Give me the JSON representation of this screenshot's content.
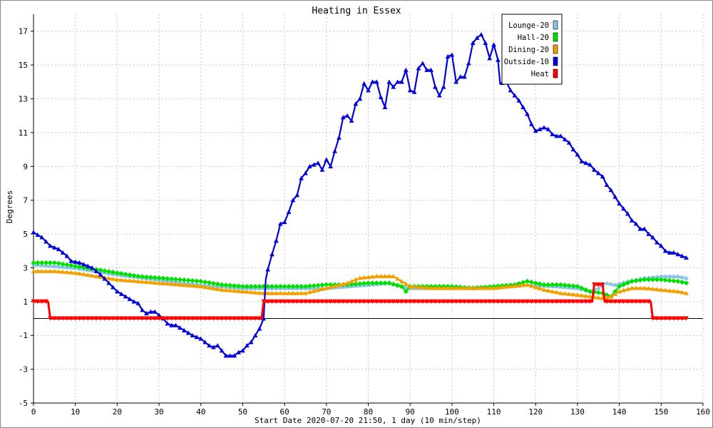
{
  "chart_data": {
    "type": "line",
    "title": "Heating in Essex",
    "xlabel": "Start Date 2020-07-20 21:50, 1 day (10 min/step)",
    "ylabel": "Degrees",
    "xlim": [
      0,
      160
    ],
    "ylim": [
      -5,
      18
    ],
    "x_ticks": [
      0,
      10,
      20,
      30,
      40,
      50,
      60,
      70,
      80,
      90,
      100,
      110,
      120,
      130,
      140,
      150,
      160
    ],
    "y_ticks": [
      -5,
      -3,
      -1,
      1,
      3,
      5,
      7,
      9,
      11,
      13,
      15,
      17
    ],
    "grid": true,
    "legend_position": "top-right",
    "zero_line": 0,
    "series": [
      {
        "name": "Lounge-20",
        "color": "#87c4e6",
        "marker": "triangle",
        "points": [
          [
            0,
            3.2
          ],
          [
            10,
            3.0
          ],
          [
            20,
            2.6
          ],
          [
            30,
            2.3
          ],
          [
            40,
            2.0
          ],
          [
            50,
            1.8
          ],
          [
            55,
            1.8
          ],
          [
            60,
            1.8
          ],
          [
            70,
            1.8
          ],
          [
            80,
            2.0
          ],
          [
            85,
            2.1
          ],
          [
            88,
            1.9
          ],
          [
            90,
            1.8
          ],
          [
            100,
            1.8
          ],
          [
            110,
            1.9
          ],
          [
            118,
            2.0
          ],
          [
            125,
            1.9
          ],
          [
            130,
            1.8
          ],
          [
            133,
            1.6
          ],
          [
            135,
            1.8
          ],
          [
            137,
            2.1
          ],
          [
            139,
            2.0
          ],
          [
            142,
            2.2
          ],
          [
            146,
            2.4
          ],
          [
            150,
            2.5
          ],
          [
            154,
            2.5
          ],
          [
            156,
            2.4
          ]
        ]
      },
      {
        "name": "Hall-20",
        "color": "#00e000",
        "marker": "diamond",
        "points": [
          [
            0,
            3.3
          ],
          [
            5,
            3.3
          ],
          [
            10,
            3.1
          ],
          [
            15,
            2.9
          ],
          [
            20,
            2.7
          ],
          [
            25,
            2.5
          ],
          [
            30,
            2.4
          ],
          [
            35,
            2.3
          ],
          [
            40,
            2.2
          ],
          [
            45,
            2.0
          ],
          [
            50,
            1.9
          ],
          [
            55,
            1.9
          ],
          [
            60,
            1.9
          ],
          [
            65,
            1.9
          ],
          [
            70,
            2.0
          ],
          [
            75,
            2.0
          ],
          [
            80,
            2.1
          ],
          [
            85,
            2.1
          ],
          [
            88,
            1.9
          ],
          [
            89,
            1.6
          ],
          [
            90,
            1.9
          ],
          [
            95,
            1.9
          ],
          [
            100,
            1.9
          ],
          [
            105,
            1.8
          ],
          [
            110,
            1.9
          ],
          [
            115,
            2.0
          ],
          [
            118,
            2.2
          ],
          [
            122,
            2.0
          ],
          [
            126,
            2.0
          ],
          [
            130,
            1.9
          ],
          [
            133,
            1.6
          ],
          [
            136,
            1.5
          ],
          [
            138,
            1.3
          ],
          [
            140,
            1.9
          ],
          [
            143,
            2.2
          ],
          [
            146,
            2.3
          ],
          [
            150,
            2.3
          ],
          [
            154,
            2.2
          ],
          [
            156,
            2.1
          ]
        ]
      },
      {
        "name": "Dining-20",
        "color": "#f0a000",
        "marker": "triangle",
        "points": [
          [
            0,
            2.8
          ],
          [
            5,
            2.8
          ],
          [
            10,
            2.7
          ],
          [
            15,
            2.5
          ],
          [
            20,
            2.3
          ],
          [
            25,
            2.2
          ],
          [
            30,
            2.1
          ],
          [
            35,
            2.0
          ],
          [
            40,
            1.9
          ],
          [
            45,
            1.7
          ],
          [
            50,
            1.6
          ],
          [
            55,
            1.5
          ],
          [
            60,
            1.5
          ],
          [
            65,
            1.5
          ],
          [
            70,
            1.8
          ],
          [
            75,
            2.1
          ],
          [
            78,
            2.4
          ],
          [
            82,
            2.5
          ],
          [
            86,
            2.5
          ],
          [
            88,
            2.2
          ],
          [
            90,
            1.9
          ],
          [
            95,
            1.8
          ],
          [
            100,
            1.8
          ],
          [
            105,
            1.8
          ],
          [
            110,
            1.8
          ],
          [
            118,
            2.0
          ],
          [
            122,
            1.7
          ],
          [
            126,
            1.5
          ],
          [
            130,
            1.4
          ],
          [
            133,
            1.3
          ],
          [
            136,
            1.2
          ],
          [
            138,
            1.3
          ],
          [
            140,
            1.6
          ],
          [
            143,
            1.8
          ],
          [
            146,
            1.8
          ],
          [
            150,
            1.7
          ],
          [
            154,
            1.6
          ],
          [
            156,
            1.5
          ]
        ]
      },
      {
        "name": "Outside-10",
        "color": "#0000dd",
        "marker": "triangle",
        "points": [
          [
            0,
            5.1
          ],
          [
            2,
            4.8
          ],
          [
            4,
            4.3
          ],
          [
            6,
            4.1
          ],
          [
            8,
            3.7
          ],
          [
            9,
            3.4
          ],
          [
            11,
            3.3
          ],
          [
            12,
            3.2
          ],
          [
            14,
            3.0
          ],
          [
            16,
            2.6
          ],
          [
            18,
            2.1
          ],
          [
            20,
            1.6
          ],
          [
            22,
            1.3
          ],
          [
            24,
            1.0
          ],
          [
            25,
            0.9
          ],
          [
            26,
            0.5
          ],
          [
            27,
            0.3
          ],
          [
            28,
            0.4
          ],
          [
            29,
            0.4
          ],
          [
            30,
            0.2
          ],
          [
            31,
            0.0
          ],
          [
            32,
            -0.3
          ],
          [
            33,
            -0.4
          ],
          [
            34,
            -0.4
          ],
          [
            36,
            -0.7
          ],
          [
            38,
            -1.0
          ],
          [
            40,
            -1.2
          ],
          [
            42,
            -1.6
          ],
          [
            43,
            -1.7
          ],
          [
            44,
            -1.6
          ],
          [
            45,
            -1.9
          ],
          [
            46,
            -2.2
          ],
          [
            48,
            -2.2
          ],
          [
            49,
            -2.0
          ],
          [
            50,
            -1.9
          ],
          [
            51,
            -1.6
          ],
          [
            52,
            -1.4
          ],
          [
            53,
            -1.0
          ],
          [
            54,
            -0.6
          ],
          [
            55,
            0.0
          ],
          [
            55.5,
            2.3
          ],
          [
            56,
            2.9
          ],
          [
            57,
            3.8
          ],
          [
            58,
            4.6
          ],
          [
            59,
            5.6
          ],
          [
            60,
            5.7
          ],
          [
            61,
            6.3
          ],
          [
            62,
            7.0
          ],
          [
            63,
            7.3
          ],
          [
            64,
            8.3
          ],
          [
            65,
            8.6
          ],
          [
            66,
            9.0
          ],
          [
            67,
            9.1
          ],
          [
            68,
            9.2
          ],
          [
            69,
            8.8
          ],
          [
            70,
            9.4
          ],
          [
            71,
            9.0
          ],
          [
            72,
            9.9
          ],
          [
            73,
            10.7
          ],
          [
            74,
            11.9
          ],
          [
            75,
            12.0
          ],
          [
            76,
            11.7
          ],
          [
            77,
            12.7
          ],
          [
            78,
            13.0
          ],
          [
            79,
            13.9
          ],
          [
            80,
            13.5
          ],
          [
            81,
            14.0
          ],
          [
            82,
            14.0
          ],
          [
            83,
            13.1
          ],
          [
            84,
            12.5
          ],
          [
            85,
            14.0
          ],
          [
            86,
            13.7
          ],
          [
            87,
            14.0
          ],
          [
            88,
            14.0
          ],
          [
            89,
            14.7
          ],
          [
            90,
            13.5
          ],
          [
            91,
            13.4
          ],
          [
            92,
            14.8
          ],
          [
            93,
            15.1
          ],
          [
            94,
            14.7
          ],
          [
            95,
            14.7
          ],
          [
            96,
            13.7
          ],
          [
            97,
            13.2
          ],
          [
            98,
            13.7
          ],
          [
            99,
            15.5
          ],
          [
            100,
            15.6
          ],
          [
            101,
            14.0
          ],
          [
            102,
            14.3
          ],
          [
            103,
            14.3
          ],
          [
            104,
            15.1
          ],
          [
            105,
            16.3
          ],
          [
            106,
            16.6
          ],
          [
            107,
            16.8
          ],
          [
            108,
            16.3
          ],
          [
            109,
            15.4
          ],
          [
            110,
            16.2
          ],
          [
            111,
            15.3
          ],
          [
            111.5,
            13.9
          ],
          [
            113,
            14.0
          ],
          [
            114,
            13.5
          ],
          [
            115,
            13.2
          ],
          [
            116,
            12.9
          ],
          [
            117,
            12.5
          ],
          [
            118,
            12.1
          ],
          [
            119,
            11.5
          ],
          [
            120,
            11.1
          ],
          [
            121,
            11.2
          ],
          [
            122,
            11.3
          ],
          [
            123,
            11.2
          ],
          [
            124,
            10.9
          ],
          [
            125,
            10.8
          ],
          [
            126,
            10.8
          ],
          [
            127,
            10.6
          ],
          [
            128,
            10.4
          ],
          [
            129,
            10.0
          ],
          [
            130,
            9.7
          ],
          [
            131,
            9.3
          ],
          [
            132,
            9.2
          ],
          [
            133,
            9.1
          ],
          [
            134,
            8.8
          ],
          [
            135,
            8.6
          ],
          [
            136,
            8.4
          ],
          [
            137,
            7.9
          ],
          [
            138,
            7.6
          ],
          [
            139,
            7.2
          ],
          [
            140,
            6.8
          ],
          [
            141,
            6.5
          ],
          [
            142,
            6.2
          ],
          [
            143,
            5.8
          ],
          [
            144,
            5.6
          ],
          [
            145,
            5.3
          ],
          [
            146,
            5.3
          ],
          [
            147,
            5.0
          ],
          [
            148,
            4.8
          ],
          [
            149,
            4.5
          ],
          [
            150,
            4.3
          ],
          [
            151,
            4.0
          ],
          [
            152,
            3.9
          ],
          [
            153,
            3.9
          ],
          [
            154,
            3.8
          ],
          [
            155,
            3.7
          ],
          [
            156,
            3.6
          ]
        ]
      },
      {
        "name": "Heat",
        "color": "#ff0000",
        "marker": "triangle-down",
        "points": [
          [
            0,
            1
          ],
          [
            3.5,
            1
          ],
          [
            4,
            0
          ],
          [
            54.5,
            0
          ],
          [
            55,
            1
          ],
          [
            133.5,
            1
          ],
          [
            134,
            2
          ],
          [
            136,
            2
          ],
          [
            136.5,
            1
          ],
          [
            147.5,
            1
          ],
          [
            148,
            0
          ],
          [
            156,
            0
          ]
        ]
      }
    ]
  }
}
